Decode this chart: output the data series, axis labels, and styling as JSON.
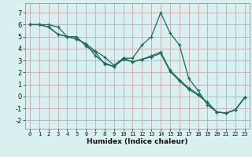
{
  "xlabel": "Humidex (Indice chaleur)",
  "background_color": "#d8f0f0",
  "grid_color": "#c8a8a8",
  "line_color": "#1a6b5a",
  "xlim": [
    -0.5,
    23.5
  ],
  "ylim": [
    -2.7,
    7.8
  ],
  "xticks": [
    0,
    1,
    2,
    3,
    4,
    5,
    6,
    7,
    8,
    9,
    10,
    11,
    12,
    13,
    14,
    15,
    16,
    17,
    18,
    19,
    20,
    21,
    22,
    23
  ],
  "yticks": [
    -2,
    -1,
    0,
    1,
    2,
    3,
    4,
    5,
    6,
    7
  ],
  "series1_y": [
    6,
    6,
    6,
    5.8,
    5.0,
    5.0,
    4.2,
    3.7,
    2.7,
    2.5,
    3.2,
    3.2,
    4.3,
    5.0,
    7.0,
    5.3,
    4.3,
    1.5,
    0.5,
    -0.7,
    -1.3,
    -1.4,
    -1.1,
    -0.1
  ],
  "series2_y": [
    6,
    6,
    5.8,
    5.2,
    5.0,
    4.8,
    4.4,
    3.4,
    2.8,
    2.5,
    3.1,
    2.9,
    3.1,
    3.3,
    3.6,
    2.1,
    1.3,
    0.6,
    0.1,
    -0.5,
    -1.3,
    -1.4,
    -1.1,
    -0.05
  ],
  "series3_y": [
    6,
    6,
    5.8,
    5.2,
    5.0,
    4.8,
    4.4,
    3.8,
    3.3,
    2.6,
    3.2,
    2.9,
    3.1,
    3.4,
    3.7,
    2.2,
    1.4,
    0.7,
    0.2,
    -0.5,
    -1.3,
    -1.4,
    -1.1,
    -0.1
  ],
  "xlabel_fontsize": 6.5,
  "xlabel_bold": true,
  "tick_fontsize_x": 5.0,
  "tick_fontsize_y": 6.0,
  "marker_size": 3.5,
  "linewidth": 0.9
}
